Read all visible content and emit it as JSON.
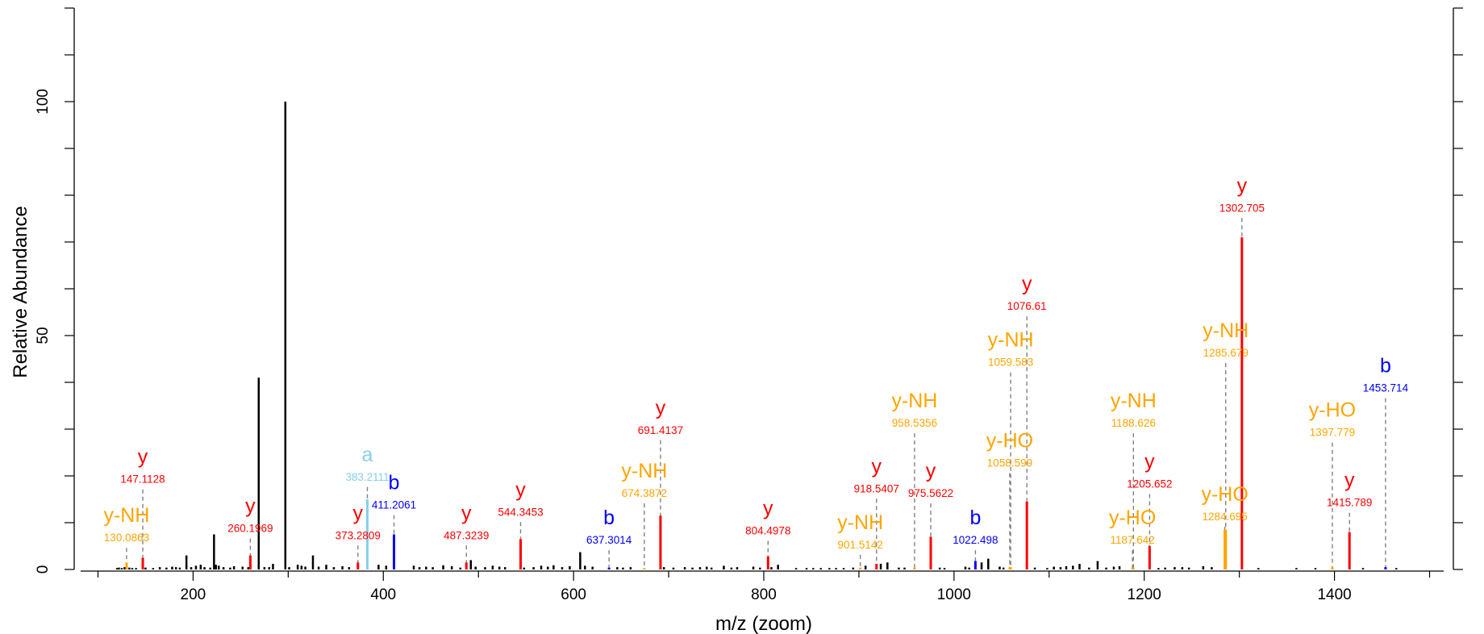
{
  "chart_data": {
    "type": "bar",
    "xlabel": "m/z (zoom)",
    "ylabel": "Relative Abundance",
    "xlim": [
      75,
      1525
    ],
    "ylim": [
      0,
      120
    ],
    "x_ticks": [
      "200",
      "400",
      "600",
      "800",
      "1000",
      "1200",
      "1400"
    ],
    "y_ticks": [
      "0",
      "50",
      "100"
    ],
    "colors": {
      "unannotated": "#000000",
      "y": "#ff0000",
      "b": "#0000ff",
      "a": "#87ceeb",
      "neutral_loss": "#ffa500",
      "connector": "#808080"
    },
    "annotated_peaks": [
      {
        "ion": "y",
        "mz": 147.1128,
        "mz_label": "147.1128",
        "intensity": 2.5,
        "label_y": 18.5
      },
      {
        "ion": "y-NH",
        "mz": 130.0863,
        "mz_label": "130.0863",
        "intensity": 1.5,
        "label_y": 6.0
      },
      {
        "ion": "y",
        "mz": 260.1969,
        "mz_label": "260.1969",
        "intensity": 3.0,
        "label_y": 8.0
      },
      {
        "ion": "y",
        "mz": 373.2809,
        "mz_label": "373.2809",
        "intensity": 1.5,
        "label_y": 6.5
      },
      {
        "ion": "a",
        "mz": 383.2111,
        "mz_label": "383.2111",
        "intensity": 15.0,
        "label_y": 19.0
      },
      {
        "ion": "b",
        "mz": 411.2061,
        "mz_label": "411.2061",
        "intensity": 7.5,
        "label_y": 13.0
      },
      {
        "ion": "y",
        "mz": 487.3239,
        "mz_label": "487.3239",
        "intensity": 1.5,
        "label_y": 6.5
      },
      {
        "ion": "y",
        "mz": 544.3453,
        "mz_label": "544.3453",
        "intensity": 6.5,
        "label_y": 11.5
      },
      {
        "ion": "b",
        "mz": 637.3014,
        "mz_label": "637.3014",
        "intensity": 0.4,
        "label_y": 5.5
      },
      {
        "ion": "y-NH",
        "mz": 674.3872,
        "mz_label": "674.3872",
        "intensity": 0.3,
        "label_y": 15.5
      },
      {
        "ion": "y",
        "mz": 691.4137,
        "mz_label": "691.4137",
        "intensity": 11.5,
        "label_y": 29.0
      },
      {
        "ion": "y",
        "mz": 804.4978,
        "mz_label": "804.4978",
        "intensity": 2.8,
        "label_y": 7.5
      },
      {
        "ion": "y-NH",
        "mz": 901.5142,
        "mz_label": "901.5142",
        "intensity": 0.4,
        "label_y": 4.5
      },
      {
        "ion": "y",
        "mz": 918.5407,
        "mz_label": "918.5407",
        "intensity": 1.2,
        "label_y": 16.5
      },
      {
        "ion": "y-NH",
        "mz": 958.5356,
        "mz_label": "958.5356",
        "intensity": 0.4,
        "label_y": 30.5
      },
      {
        "ion": "y",
        "mz": 975.5622,
        "mz_label": "975.5622",
        "intensity": 7.0,
        "label_y": 15.5
      },
      {
        "ion": "b",
        "mz": 1022.498,
        "mz_label": "1022.498",
        "intensity": 1.8,
        "label_y": 5.5
      },
      {
        "ion": "y-NH",
        "mz": 1059.583,
        "mz_label": "1059.583",
        "intensity": 0.5,
        "label_y": 43.5
      },
      {
        "ion": "y-HO",
        "mz": 1058.599,
        "mz_label": "1058.599",
        "intensity": 0.5,
        "label_y": 22.0
      },
      {
        "ion": "y",
        "mz": 1076.61,
        "mz_label": "1076.61",
        "intensity": 14.5,
        "label_y": 55.5
      },
      {
        "ion": "y-HO",
        "mz": 1187.642,
        "mz_label": "1187.642",
        "intensity": 0.4,
        "label_y": 5.5
      },
      {
        "ion": "y-NH",
        "mz": 1188.626,
        "mz_label": "1188.626",
        "intensity": 0.4,
        "label_y": 30.5
      },
      {
        "ion": "y",
        "mz": 1205.652,
        "mz_label": "1205.652",
        "intensity": 5.0,
        "label_y": 17.5
      },
      {
        "ion": "y-NH",
        "mz": 1285.679,
        "mz_label": "1285.679",
        "intensity": 8.5,
        "label_y": 45.5
      },
      {
        "ion": "y-HO",
        "mz": 1284.695,
        "mz_label": "1284.695",
        "intensity": 8.5,
        "label_y": 10.5
      },
      {
        "ion": "y",
        "mz": 1302.705,
        "mz_label": "1302.705",
        "intensity": 71.0,
        "label_y": 76.5
      },
      {
        "ion": "y-HO",
        "mz": 1397.779,
        "mz_label": "1397.779",
        "intensity": 0.5,
        "label_y": 28.5
      },
      {
        "ion": "y",
        "mz": 1415.789,
        "mz_label": "1415.789",
        "intensity": 8.0,
        "label_y": 13.5
      },
      {
        "ion": "b",
        "mz": 1453.714,
        "mz_label": "1453.714",
        "intensity": 0.5,
        "label_y": 38.0
      }
    ],
    "unannotated_peaks": [
      [
        120,
        0.3
      ],
      [
        122,
        0.4
      ],
      [
        125,
        0.3
      ],
      [
        128,
        0.5
      ],
      [
        130,
        0.3
      ],
      [
        133,
        0.4
      ],
      [
        136,
        0.3
      ],
      [
        140,
        0.3
      ],
      [
        150,
        0.4
      ],
      [
        158,
        0.3
      ],
      [
        165,
        0.5
      ],
      [
        172,
        0.4
      ],
      [
        178,
        0.6
      ],
      [
        182,
        0.5
      ],
      [
        186,
        0.4
      ],
      [
        193,
        3.0
      ],
      [
        198,
        0.5
      ],
      [
        203,
        0.8
      ],
      [
        208,
        1.0
      ],
      [
        212,
        0.5
      ],
      [
        218,
        0.4
      ],
      [
        222,
        7.5
      ],
      [
        224,
        1.0
      ],
      [
        227,
        0.8
      ],
      [
        232,
        0.5
      ],
      [
        239,
        0.4
      ],
      [
        243,
        0.7
      ],
      [
        252,
        0.6
      ],
      [
        258,
        0.5
      ],
      [
        269,
        41.0
      ],
      [
        275,
        0.5
      ],
      [
        280,
        0.5
      ],
      [
        284,
        1.2
      ],
      [
        297,
        100.0
      ],
      [
        301,
        0.5
      ],
      [
        310,
        1.0
      ],
      [
        314,
        0.8
      ],
      [
        318,
        0.6
      ],
      [
        326,
        3.0
      ],
      [
        332,
        0.6
      ],
      [
        340,
        1.0
      ],
      [
        348,
        0.5
      ],
      [
        357,
        0.7
      ],
      [
        364,
        0.5
      ],
      [
        395,
        1.0
      ],
      [
        403,
        0.8
      ],
      [
        432,
        0.8
      ],
      [
        438,
        0.5
      ],
      [
        445,
        0.6
      ],
      [
        452,
        0.5
      ],
      [
        463,
        0.9
      ],
      [
        472,
        0.7
      ],
      [
        481,
        0.4
      ],
      [
        492,
        2.0
      ],
      [
        497,
        0.6
      ],
      [
        507,
        0.5
      ],
      [
        515,
        0.8
      ],
      [
        522,
        0.6
      ],
      [
        528,
        0.5
      ],
      [
        548,
        0.4
      ],
      [
        558,
        0.5
      ],
      [
        566,
        0.8
      ],
      [
        573,
        0.6
      ],
      [
        579,
        0.9
      ],
      [
        588,
        0.5
      ],
      [
        596,
        0.7
      ],
      [
        607,
        3.7
      ],
      [
        612,
        0.8
      ],
      [
        620,
        0.6
      ],
      [
        646,
        0.5
      ],
      [
        652,
        0.4
      ],
      [
        660,
        0.5
      ],
      [
        695,
        0.5
      ],
      [
        705,
        0.4
      ],
      [
        717,
        0.5
      ],
      [
        725,
        0.4
      ],
      [
        733,
        0.5
      ],
      [
        740,
        0.6
      ],
      [
        745,
        0.4
      ],
      [
        758,
        0.8
      ],
      [
        766,
        0.4
      ],
      [
        772,
        0.5
      ],
      [
        789,
        0.6
      ],
      [
        796,
        0.4
      ],
      [
        808,
        0.5
      ],
      [
        815,
        1.0
      ],
      [
        834,
        0.3
      ],
      [
        845,
        0.3
      ],
      [
        852,
        0.3
      ],
      [
        860,
        0.3
      ],
      [
        869,
        0.3
      ],
      [
        876,
        0.3
      ],
      [
        884,
        0.3
      ],
      [
        894,
        0.4
      ],
      [
        907,
        0.8
      ],
      [
        923,
        1.2
      ],
      [
        930,
        1.5
      ],
      [
        942,
        0.4
      ],
      [
        948,
        0.4
      ],
      [
        985,
        0.4
      ],
      [
        990,
        0.3
      ],
      [
        1012,
        0.6
      ],
      [
        1016,
        0.4
      ],
      [
        1029,
        1.5
      ],
      [
        1036,
        2.3
      ],
      [
        1048,
        0.6
      ],
      [
        1052,
        0.4
      ],
      [
        1085,
        0.4
      ],
      [
        1098,
        0.3
      ],
      [
        1105,
        0.6
      ],
      [
        1112,
        0.5
      ],
      [
        1118,
        0.7
      ],
      [
        1125,
        0.8
      ],
      [
        1132,
        1.2
      ],
      [
        1142,
        0.4
      ],
      [
        1151,
        1.8
      ],
      [
        1160,
        0.4
      ],
      [
        1168,
        0.6
      ],
      [
        1174,
        0.7
      ],
      [
        1215,
        0.3
      ],
      [
        1222,
        0.4
      ],
      [
        1232,
        0.5
      ],
      [
        1240,
        0.5
      ],
      [
        1247,
        0.4
      ],
      [
        1262,
        0.7
      ],
      [
        1271,
        0.5
      ],
      [
        1320,
        0.3
      ],
      [
        1360,
        0.3
      ],
      [
        1380,
        0.3
      ],
      [
        1430,
        0.3
      ],
      [
        1465,
        0.3
      ]
    ]
  }
}
